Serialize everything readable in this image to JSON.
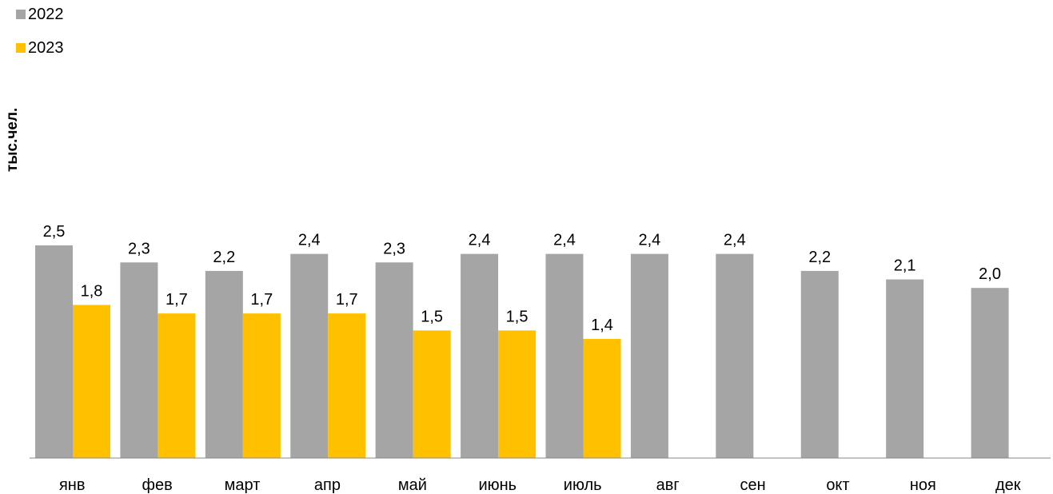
{
  "chart_data": {
    "type": "bar",
    "ylabel": "тыс.чел.",
    "categories": [
      "янв",
      "фев",
      "март",
      "апр",
      "май",
      "июнь",
      "июль",
      "авг",
      "сен",
      "окт",
      "ноя",
      "дек"
    ],
    "series": [
      {
        "name": "2022",
        "color": "#a5a5a5",
        "values": [
          2.5,
          2.3,
          2.2,
          2.4,
          2.3,
          2.4,
          2.4,
          2.4,
          2.4,
          2.2,
          2.1,
          2.0
        ],
        "labels": [
          "2,5",
          "2,3",
          "2,2",
          "2,4",
          "2,3",
          "2,4",
          "2,4",
          "2,4",
          "2,4",
          "2,2",
          "2,1",
          "2,0"
        ]
      },
      {
        "name": "2023",
        "color": "#ffc000",
        "values": [
          1.8,
          1.7,
          1.7,
          1.7,
          1.5,
          1.5,
          1.4,
          null,
          null,
          null,
          null,
          null
        ],
        "labels": [
          "1,8",
          "1,7",
          "1,7",
          "1,7",
          "1,5",
          "1,5",
          "1,4",
          null,
          null,
          null,
          null,
          null
        ]
      }
    ],
    "ylim": [
      0,
      3.0
    ],
    "grid": false,
    "legend_position": "top-left"
  }
}
